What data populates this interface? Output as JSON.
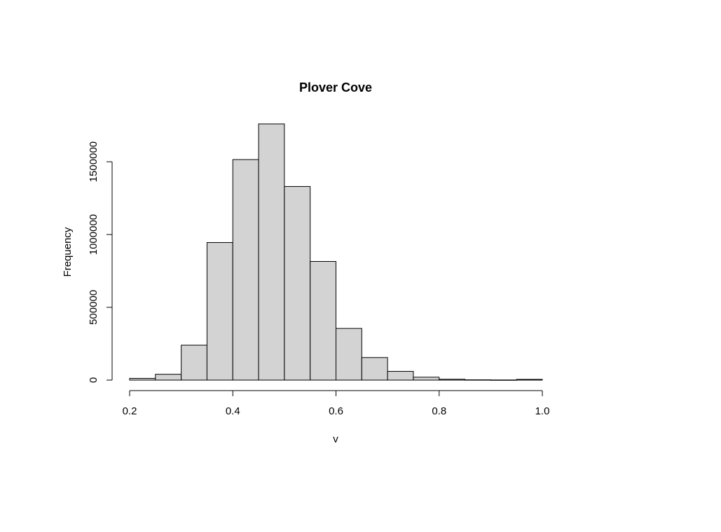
{
  "chart_data": {
    "type": "bar",
    "title": "Plover Cove",
    "xlabel": "v",
    "ylabel": "Frequency",
    "bin_edges": [
      0.2,
      0.25,
      0.3,
      0.35,
      0.4,
      0.45,
      0.5,
      0.55,
      0.6,
      0.65,
      0.7,
      0.75,
      0.8,
      0.85,
      0.9,
      0.95,
      1.0
    ],
    "values": [
      12000,
      40000,
      240000,
      945000,
      1515000,
      1760000,
      1330000,
      815000,
      355000,
      155000,
      60000,
      20000,
      6000,
      2000,
      1000,
      5000
    ],
    "xlim": [
      0.2,
      1.0
    ],
    "ylim": [
      0,
      1760000
    ],
    "x_ticks": [
      0.2,
      0.4,
      0.6,
      0.8,
      1.0
    ],
    "x_tick_labels": [
      "0.2",
      "0.4",
      "0.6",
      "0.8",
      "1.0"
    ],
    "y_ticks": [
      0,
      500000,
      1000000,
      1500000
    ],
    "y_tick_labels": [
      "0",
      "500000",
      "1000000",
      "1500000"
    ],
    "grid": false,
    "bar_fill": "#d3d3d3",
    "bar_stroke": "#000000"
  }
}
